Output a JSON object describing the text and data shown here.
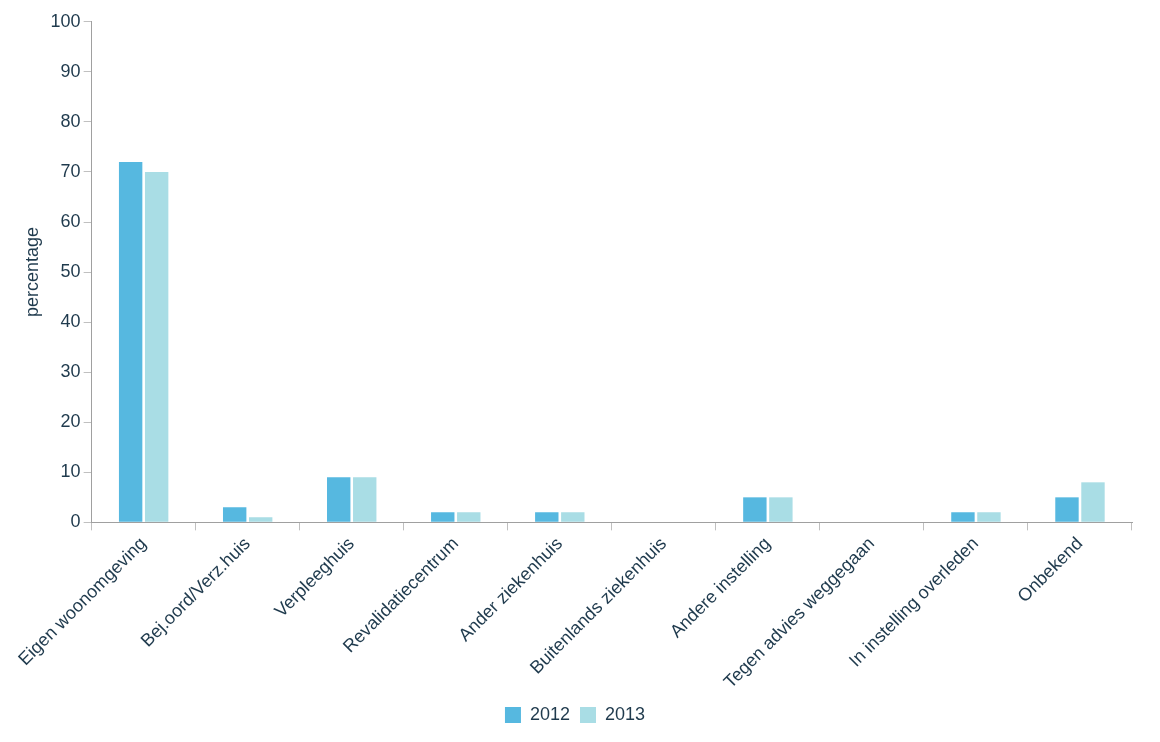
{
  "chart_data": {
    "type": "bar",
    "ylabel": "percentage",
    "categories": [
      "Eigen woonomgeving",
      "Bej.oord/Verz.huis",
      "Verpleeghuis",
      "Revalidatiecentrum",
      "Ander ziekenhuis",
      "Buitenlands ziekenhuis",
      "Andere instelling",
      "Tegen advies weggegaan",
      "In instelling overleden",
      "Onbekend"
    ],
    "series": [
      {
        "name": "2012",
        "color": "#56b8e0",
        "values": [
          72,
          3,
          9,
          2,
          2,
          0,
          5,
          0,
          2,
          5
        ]
      },
      {
        "name": "2013",
        "color": "#a9dde5",
        "values": [
          70,
          1,
          9,
          2,
          2,
          0,
          5,
          0,
          2,
          8
        ]
      }
    ],
    "ylim": [
      0,
      100
    ],
    "yticks": [
      0,
      10,
      20,
      30,
      40,
      50,
      60,
      70,
      80,
      90,
      100
    ],
    "grid": false,
    "legend": "bottom"
  }
}
